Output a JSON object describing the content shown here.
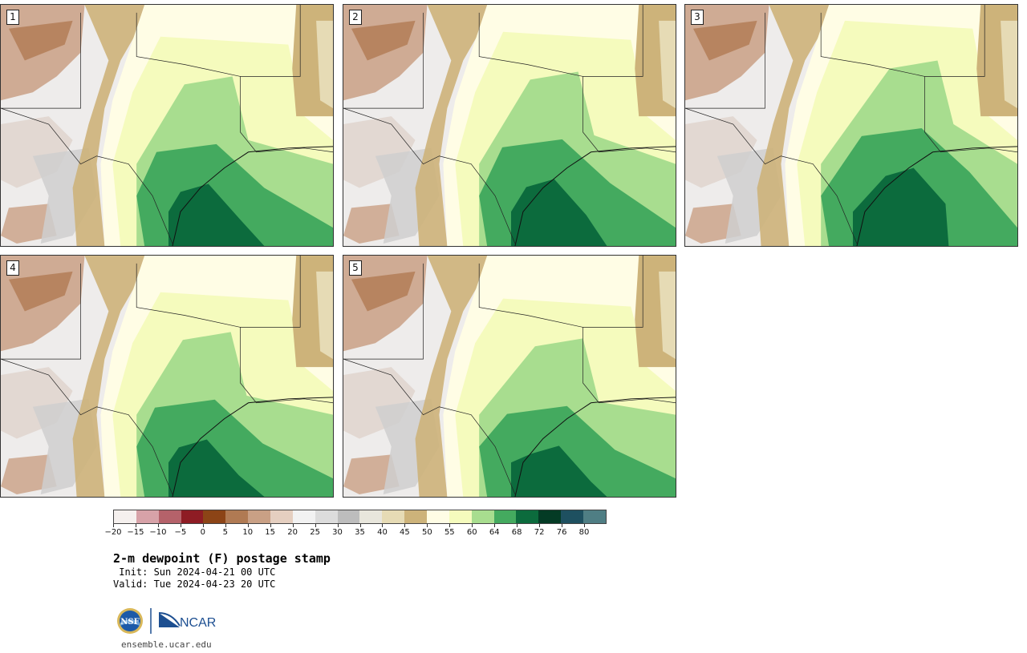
{
  "panels": [
    {
      "label": "1"
    },
    {
      "label": "2"
    },
    {
      "label": "3"
    },
    {
      "label": "4"
    },
    {
      "label": "5"
    }
  ],
  "colorbar": {
    "colors": [
      "#f5f0ee",
      "#d7a2a8",
      "#b5626a",
      "#8e1c24",
      "#8c4416",
      "#b07a53",
      "#c9a085",
      "#e5cfc0",
      "#f2f2f2",
      "#dcdcdc",
      "#bdbdbd",
      "#e8e6dc",
      "#e6dbb5",
      "#cdb37a",
      "#fffde5",
      "#f5fbbd",
      "#a8dd8f",
      "#44aa5f",
      "#0c6b3d",
      "#043b25",
      "#1e5060",
      "#4f7e84"
    ],
    "ticks": [
      "−20",
      "−15",
      "−10",
      "−5",
      "0",
      "5",
      "10",
      "15",
      "20",
      "25",
      "30",
      "35",
      "40",
      "45",
      "50",
      "55",
      "60",
      "64",
      "68",
      "72",
      "76",
      "80"
    ]
  },
  "title": "2-m dewpoint (F) postage stamp",
  "init": " Init: Sun 2024-04-21 00 UTC",
  "valid": "Valid: Tue 2024-04-23 20 UTC",
  "logos": {
    "nsf": "NSF",
    "ncar": "NCAR"
  },
  "website": "ensemble.ucar.edu",
  "colors": {
    "land_brown": "#b07a53",
    "tan": "#cdb37a",
    "gray": "#dcdcdc",
    "pale_yellow": "#fffde5",
    "yellow": "#f5fbbd",
    "light_green": "#a8dd8f",
    "green": "#44aa5f",
    "dark_green": "#0c6b3d"
  }
}
